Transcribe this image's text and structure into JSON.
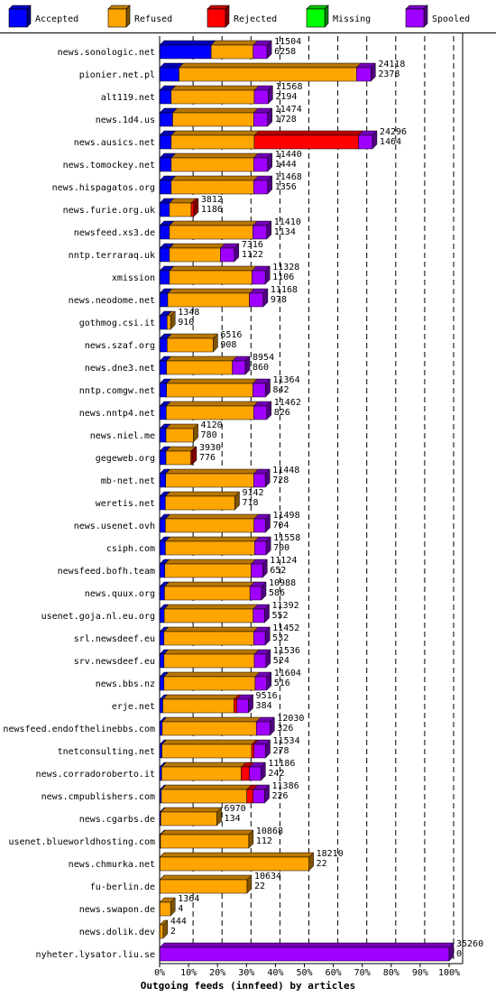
{
  "chart_data": {
    "type": "bar",
    "orientation": "horizontal",
    "stacked": true,
    "style": "3d",
    "title": "Outgoing feeds (innfeed) by articles",
    "xlabel": "",
    "ylabel": "",
    "xlim": [
      0,
      100
    ],
    "x_unit": "%",
    "x_ticks": [
      "0%",
      "10%",
      "20%",
      "30%",
      "40%",
      "50%",
      "60%",
      "70%",
      "80%",
      "90%",
      "100%"
    ],
    "grid": "vertical dashed",
    "legend_position": "top",
    "legend": [
      {
        "name": "Accepted",
        "color": "#0000ff"
      },
      {
        "name": "Refused",
        "color": "#ffa500"
      },
      {
        "name": "Rejected",
        "color": "#ff0000"
      },
      {
        "name": "Missing",
        "color": "#00ff00"
      },
      {
        "name": "Spooled",
        "color": "#a000ff"
      }
    ],
    "rows": [
      {
        "label": "news.sonologic.net",
        "total": "11504",
        "accepted_count": "6258",
        "accepted": 17.8,
        "refused": 14.5,
        "rejected": 0,
        "spooled": 4.8
      },
      {
        "label": "pionier.net.pl",
        "total": "24118",
        "accepted_count": "2378",
        "accepted": 6.7,
        "refused": 61.3,
        "rejected": 0,
        "spooled": 5.0
      },
      {
        "label": "alt119.net",
        "total": "11568",
        "accepted_count": "2194",
        "accepted": 4.0,
        "refused": 28.7,
        "rejected": 0,
        "spooled": 4.8
      },
      {
        "label": "news.1d4.us",
        "total": "11474",
        "accepted_count": "1728",
        "accepted": 4.5,
        "refused": 28.0,
        "rejected": 0,
        "spooled": 4.8
      },
      {
        "label": "news.ausics.net",
        "total": "24296",
        "accepted_count": "1464",
        "accepted": 4.0,
        "refused": 28.7,
        "rejected": 36.0,
        "spooled": 4.8
      },
      {
        "label": "news.tomockey.net",
        "total": "11440",
        "accepted_count": "1444",
        "accepted": 4.0,
        "refused": 28.5,
        "rejected": 0,
        "spooled": 4.8
      },
      {
        "label": "news.hispagatos.org",
        "total": "11468",
        "accepted_count": "1356",
        "accepted": 4.0,
        "refused": 28.5,
        "rejected": 0,
        "spooled": 4.8
      },
      {
        "label": "news.furie.org.uk",
        "total": "3812",
        "accepted_count": "1186",
        "accepted": 3.4,
        "refused": 7.5,
        "rejected": 0.9,
        "spooled": 0
      },
      {
        "label": "newsfeed.xs3.de",
        "total": "11410",
        "accepted_count": "1134",
        "accepted": 3.4,
        "refused": 28.8,
        "rejected": 0,
        "spooled": 4.8
      },
      {
        "label": "nntp.terraraq.uk",
        "total": "7316",
        "accepted_count": "1122",
        "accepted": 3.4,
        "refused": 17.6,
        "rejected": 0,
        "spooled": 4.8
      },
      {
        "label": "xmission",
        "total": "11328",
        "accepted_count": "1106",
        "accepted": 3.4,
        "refused": 28.5,
        "rejected": 0,
        "spooled": 4.6
      },
      {
        "label": "news.neodome.net",
        "total": "11168",
        "accepted_count": "978",
        "accepted": 2.8,
        "refused": 28.2,
        "rejected": 0,
        "spooled": 4.8
      },
      {
        "label": "gothmog.csi.it",
        "total": "1348",
        "accepted_count": "910",
        "accepted": 2.6,
        "refused": 1.2,
        "rejected": 0,
        "spooled": 0
      },
      {
        "label": "news.szaf.org",
        "total": "6516",
        "accepted_count": "908",
        "accepted": 2.6,
        "refused": 15.9,
        "rejected": 0,
        "spooled": 0
      },
      {
        "label": "news.dne3.net",
        "total": "8954",
        "accepted_count": "860",
        "accepted": 2.4,
        "refused": 22.7,
        "rejected": 0,
        "spooled": 4.5
      },
      {
        "label": "nntp.comgw.net",
        "total": "11364",
        "accepted_count": "842",
        "accepted": 2.4,
        "refused": 29.8,
        "rejected": 0,
        "spooled": 4.4
      },
      {
        "label": "news.nntp4.net",
        "total": "11462",
        "accepted_count": "826",
        "accepted": 2.3,
        "refused": 30.2,
        "rejected": 0,
        "spooled": 4.5
      },
      {
        "label": "news.niel.me",
        "total": "4120",
        "accepted_count": "780",
        "accepted": 2.2,
        "refused": 9.5,
        "rejected": 0,
        "spooled": 0
      },
      {
        "label": "gegeweb.org",
        "total": "3930",
        "accepted_count": "776",
        "accepted": 2.2,
        "refused": 8.6,
        "rejected": 0.4,
        "spooled": 0
      },
      {
        "label": "mb-net.net",
        "total": "11448",
        "accepted_count": "728",
        "accepted": 2.1,
        "refused": 30.4,
        "rejected": 0,
        "spooled": 4.0
      },
      {
        "label": "weretis.net",
        "total": "9142",
        "accepted_count": "718",
        "accepted": 2.0,
        "refused": 24.0,
        "rejected": 0,
        "spooled": 0
      },
      {
        "label": "news.usenet.ovh",
        "total": "11498",
        "accepted_count": "704",
        "accepted": 2.0,
        "refused": 30.6,
        "rejected": 0,
        "spooled": 4.0
      },
      {
        "label": "csiph.com",
        "total": "11558",
        "accepted_count": "700",
        "accepted": 2.0,
        "refused": 30.8,
        "rejected": 0,
        "spooled": 4.0
      },
      {
        "label": "newsfeed.bofh.team",
        "total": "11124",
        "accepted_count": "652",
        "accepted": 1.8,
        "refused": 29.8,
        "rejected": 0,
        "spooled": 4.0
      },
      {
        "label": "news.quux.org",
        "total": "10988",
        "accepted_count": "586",
        "accepted": 1.7,
        "refused": 29.5,
        "rejected": 0,
        "spooled": 4.0
      },
      {
        "label": "usenet.goja.nl.eu.org",
        "total": "11392",
        "accepted_count": "552",
        "accepted": 1.6,
        "refused": 30.7,
        "rejected": 0,
        "spooled": 4.0
      },
      {
        "label": "srl.newsdeef.eu",
        "total": "11452",
        "accepted_count": "532",
        "accepted": 1.5,
        "refused": 31.0,
        "rejected": 0,
        "spooled": 4.0
      },
      {
        "label": "srv.newsdeef.eu",
        "total": "11536",
        "accepted_count": "524",
        "accepted": 1.5,
        "refused": 31.2,
        "rejected": 0,
        "spooled": 4.0
      },
      {
        "label": "news.bbs.nz",
        "total": "11604",
        "accepted_count": "516",
        "accepted": 1.5,
        "refused": 31.5,
        "rejected": 0,
        "spooled": 4.0
      },
      {
        "label": "erje.net",
        "total": "9516",
        "accepted_count": "384",
        "accepted": 1.1,
        "refused": 24.6,
        "rejected": 1.0,
        "spooled": 4.0
      },
      {
        "label": "newsfeed.endofthelinebbs.com",
        "total": "12030",
        "accepted_count": "326",
        "accepted": 0.9,
        "refused": 32.5,
        "rejected": 0,
        "spooled": 4.7
      },
      {
        "label": "tnetconsulting.net",
        "total": "11534",
        "accepted_count": "278",
        "accepted": 0.8,
        "refused": 31.0,
        "rejected": 0.8,
        "spooled": 4.0
      },
      {
        "label": "news.corradoroberto.it",
        "total": "11186",
        "accepted_count": "242",
        "accepted": 0.7,
        "refused": 27.5,
        "rejected": 2.8,
        "spooled": 4.0
      },
      {
        "label": "news.cmpublishers.com",
        "total": "11386",
        "accepted_count": "226",
        "accepted": 0.6,
        "refused": 29.5,
        "rejected": 2.2,
        "spooled": 4.0
      },
      {
        "label": "news.cgarbs.de",
        "total": "6970",
        "accepted_count": "134",
        "accepted": 0.4,
        "refused": 19.4,
        "rejected": 0,
        "spooled": 0
      },
      {
        "label": "usenet.blueworldhosting.com",
        "total": "10868",
        "accepted_count": "112",
        "accepted": 0.3,
        "refused": 30.5,
        "rejected": 0,
        "spooled": 0
      },
      {
        "label": "news.chmurka.net",
        "total": "18210",
        "accepted_count": "22",
        "accepted": 0.1,
        "refused": 51.5,
        "rejected": 0,
        "spooled": 0
      },
      {
        "label": "fu-berlin.de",
        "total": "10634",
        "accepted_count": "22",
        "accepted": 0.1,
        "refused": 30.1,
        "rejected": 0,
        "spooled": 0
      },
      {
        "label": "news.swapon.de",
        "total": "1364",
        "accepted_count": "4",
        "accepted": 0,
        "refused": 3.8,
        "rejected": 0,
        "spooled": 0
      },
      {
        "label": "news.dolik.dev",
        "total": "444",
        "accepted_count": "2",
        "accepted": 0,
        "refused": 1.2,
        "rejected": 0,
        "spooled": 0
      },
      {
        "label": "nyheter.lysator.liu.se",
        "total": "35260",
        "accepted_count": "0",
        "accepted": 0,
        "refused": 0,
        "rejected": 0,
        "spooled": 100
      }
    ]
  }
}
